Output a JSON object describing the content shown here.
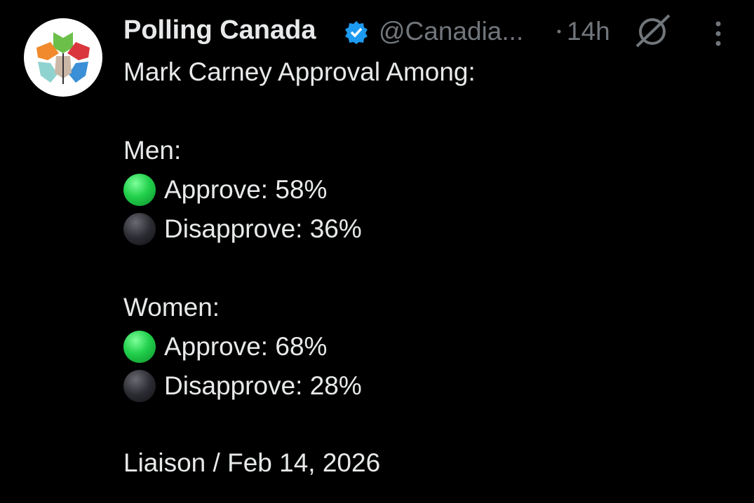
{
  "header": {
    "name": "Polling Canada",
    "handle": "@Canadia...",
    "time": "14h"
  },
  "post": {
    "title": "Mark Carney Approval Among:",
    "groups": [
      {
        "label": "Men:",
        "items": [
          "Approve: 58%",
          "Disapprove: 36%"
        ]
      },
      {
        "label": "Women:",
        "items": [
          "Approve: 68%",
          "Disapprove: 28%"
        ]
      }
    ],
    "source": "Liaison / Feb 14, 2026"
  }
}
